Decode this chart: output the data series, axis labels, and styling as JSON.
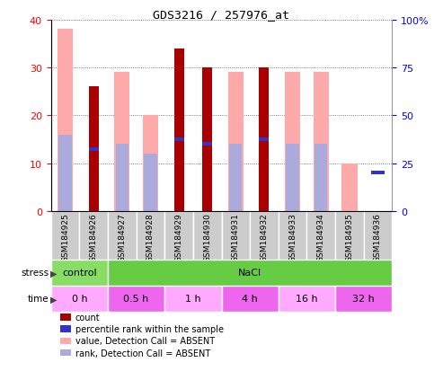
{
  "title": "GDS3216 / 257976_at",
  "samples": [
    "GSM184925",
    "GSM184926",
    "GSM184927",
    "GSM184928",
    "GSM184929",
    "GSM184930",
    "GSM184931",
    "GSM184932",
    "GSM184933",
    "GSM184934",
    "GSM184935",
    "GSM184936"
  ],
  "count_values": [
    0,
    26,
    0,
    0,
    34,
    30,
    0,
    30,
    0,
    0,
    0,
    0
  ],
  "rank_values": [
    16,
    13,
    14,
    12,
    15,
    14,
    14,
    15,
    14,
    14,
    0,
    8
  ],
  "value_absent": [
    38,
    0,
    29,
    20,
    0,
    0,
    29,
    0,
    29,
    29,
    10,
    0
  ],
  "rank_absent": [
    16,
    0,
    14,
    12,
    0,
    0,
    14,
    0,
    14,
    14,
    0,
    0
  ],
  "ylim_left": [
    0,
    40
  ],
  "ylim_right": [
    0,
    100
  ],
  "count_color": "#aa0000",
  "rank_color": "#3333cc",
  "value_absent_color": "#ffaaaa",
  "rank_absent_color": "#aaaadd",
  "stress_groups": [
    {
      "label": "control",
      "start": 0,
      "end": 2,
      "color": "#88dd66"
    },
    {
      "label": "NaCl",
      "start": 2,
      "end": 12,
      "color": "#66cc44"
    }
  ],
  "time_groups": [
    {
      "label": "0 h",
      "start": 0,
      "end": 2,
      "color": "#ffaaff"
    },
    {
      "label": "0.5 h",
      "start": 2,
      "end": 4,
      "color": "#ee66ee"
    },
    {
      "label": "1 h",
      "start": 4,
      "end": 6,
      "color": "#ffaaff"
    },
    {
      "label": "4 h",
      "start": 6,
      "end": 8,
      "color": "#ee66ee"
    },
    {
      "label": "16 h",
      "start": 8,
      "end": 10,
      "color": "#ffaaff"
    },
    {
      "label": "32 h",
      "start": 10,
      "end": 12,
      "color": "#ee66ee"
    }
  ],
  "legend_items": [
    {
      "label": "count",
      "color": "#aa0000"
    },
    {
      "label": "percentile rank within the sample",
      "color": "#3333cc"
    },
    {
      "label": "value, Detection Call = ABSENT",
      "color": "#ffaaaa"
    },
    {
      "label": "rank, Detection Call = ABSENT",
      "color": "#aaaadd"
    }
  ]
}
